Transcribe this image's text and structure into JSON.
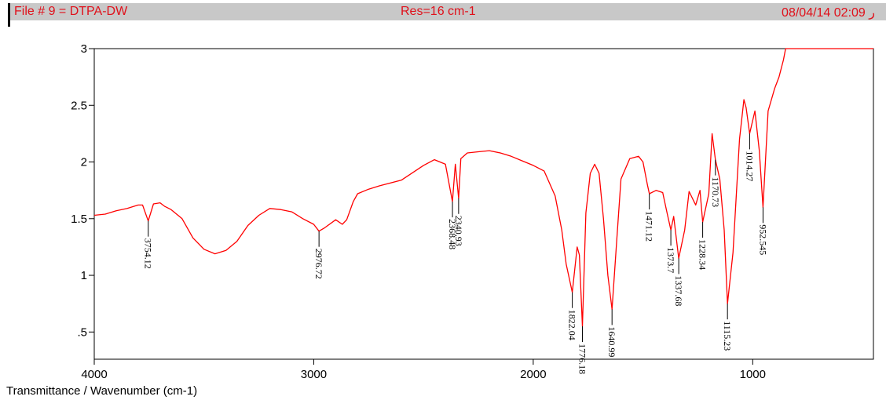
{
  "header": {
    "file": "File # 9 = DTPA-DW",
    "resolution": "Res=16 cm-1",
    "datetime": "08/04/14 02:09 ر"
  },
  "chart_data": {
    "type": "line",
    "xlabel": "Transmittance / Wavenumber (cm-1)",
    "xlim": [
      4000,
      450
    ],
    "ylim": [
      0.26,
      3.0
    ],
    "x_ticks": [
      4000,
      3000,
      2000,
      1000
    ],
    "x_tick_labels": [
      "4000",
      "3000",
      "2000",
      "1000"
    ],
    "y_ticks": [
      3,
      2.5,
      2,
      1.5,
      1,
      0.5
    ],
    "y_tick_labels": [
      "3",
      "2.5",
      "2",
      "1.5",
      "1",
      ".5"
    ],
    "series": [
      {
        "color": "#ff0000",
        "x": [
          4000,
          3950,
          3900,
          3850,
          3800,
          3780,
          3754,
          3730,
          3700,
          3680,
          3650,
          3600,
          3550,
          3500,
          3450,
          3400,
          3350,
          3300,
          3250,
          3200,
          3150,
          3100,
          3050,
          3000,
          2976,
          2950,
          2900,
          2870,
          2850,
          2820,
          2800,
          2750,
          2700,
          2600,
          2500,
          2450,
          2400,
          2368,
          2355,
          2340,
          2330,
          2300,
          2250,
          2200,
          2150,
          2100,
          2050,
          2000,
          1950,
          1900,
          1870,
          1850,
          1822,
          1800,
          1790,
          1776,
          1760,
          1740,
          1720,
          1700,
          1680,
          1660,
          1641,
          1620,
          1600,
          1560,
          1520,
          1500,
          1480,
          1471,
          1440,
          1410,
          1390,
          1373,
          1360,
          1337,
          1310,
          1290,
          1260,
          1240,
          1228,
          1200,
          1185,
          1170,
          1150,
          1130,
          1115,
          1090,
          1060,
          1040,
          1030,
          1014,
          990,
          970,
          953,
          930,
          900,
          880,
          860,
          850,
          450
        ],
        "y": [
          1.53,
          1.54,
          1.57,
          1.59,
          1.62,
          1.62,
          1.48,
          1.63,
          1.64,
          1.61,
          1.58,
          1.5,
          1.33,
          1.23,
          1.19,
          1.22,
          1.3,
          1.44,
          1.53,
          1.59,
          1.58,
          1.56,
          1.5,
          1.45,
          1.39,
          1.42,
          1.49,
          1.45,
          1.49,
          1.65,
          1.72,
          1.76,
          1.79,
          1.84,
          1.97,
          2.02,
          1.98,
          1.65,
          1.98,
          1.68,
          2.03,
          2.08,
          2.09,
          2.1,
          2.08,
          2.05,
          2.01,
          1.97,
          1.92,
          1.7,
          1.4,
          1.1,
          0.85,
          1.25,
          1.18,
          0.55,
          1.55,
          1.9,
          1.98,
          1.9,
          1.5,
          1.0,
          0.7,
          1.3,
          1.85,
          2.03,
          2.05,
          2.0,
          1.8,
          1.72,
          1.75,
          1.73,
          1.55,
          1.4,
          1.52,
          1.15,
          1.4,
          1.74,
          1.62,
          1.75,
          1.47,
          1.72,
          2.25,
          2.02,
          1.85,
          1.4,
          0.75,
          1.2,
          2.2,
          2.55,
          2.48,
          2.25,
          2.45,
          2.1,
          1.6,
          2.45,
          2.65,
          2.75,
          2.9,
          3.0,
          3.0
        ]
      }
    ],
    "peaks": [
      {
        "x": 3754,
        "y": 1.48,
        "label": "3754.12"
      },
      {
        "x": 2976,
        "y": 1.39,
        "label": "2976.72"
      },
      {
        "x": 2368,
        "y": 1.65,
        "label": "2368.48"
      },
      {
        "x": 2340,
        "y": 1.68,
        "label": "2340.93"
      },
      {
        "x": 1822,
        "y": 0.85,
        "label": "1822.04"
      },
      {
        "x": 1776,
        "y": 0.55,
        "label": "1776.18"
      },
      {
        "x": 1641,
        "y": 0.7,
        "label": "1640.99"
      },
      {
        "x": 1471,
        "y": 1.72,
        "label": "1471.12"
      },
      {
        "x": 1373,
        "y": 1.4,
        "label": "1373.7"
      },
      {
        "x": 1337,
        "y": 1.15,
        "label": "1337.68"
      },
      {
        "x": 1228,
        "y": 1.47,
        "label": "1228.34"
      },
      {
        "x": 1170,
        "y": 2.02,
        "label": "1170.73"
      },
      {
        "x": 1115,
        "y": 0.75,
        "label": "1115.23"
      },
      {
        "x": 1014,
        "y": 2.25,
        "label": "1014.27"
      },
      {
        "x": 953,
        "y": 1.6,
        "label": "952.545"
      }
    ]
  }
}
